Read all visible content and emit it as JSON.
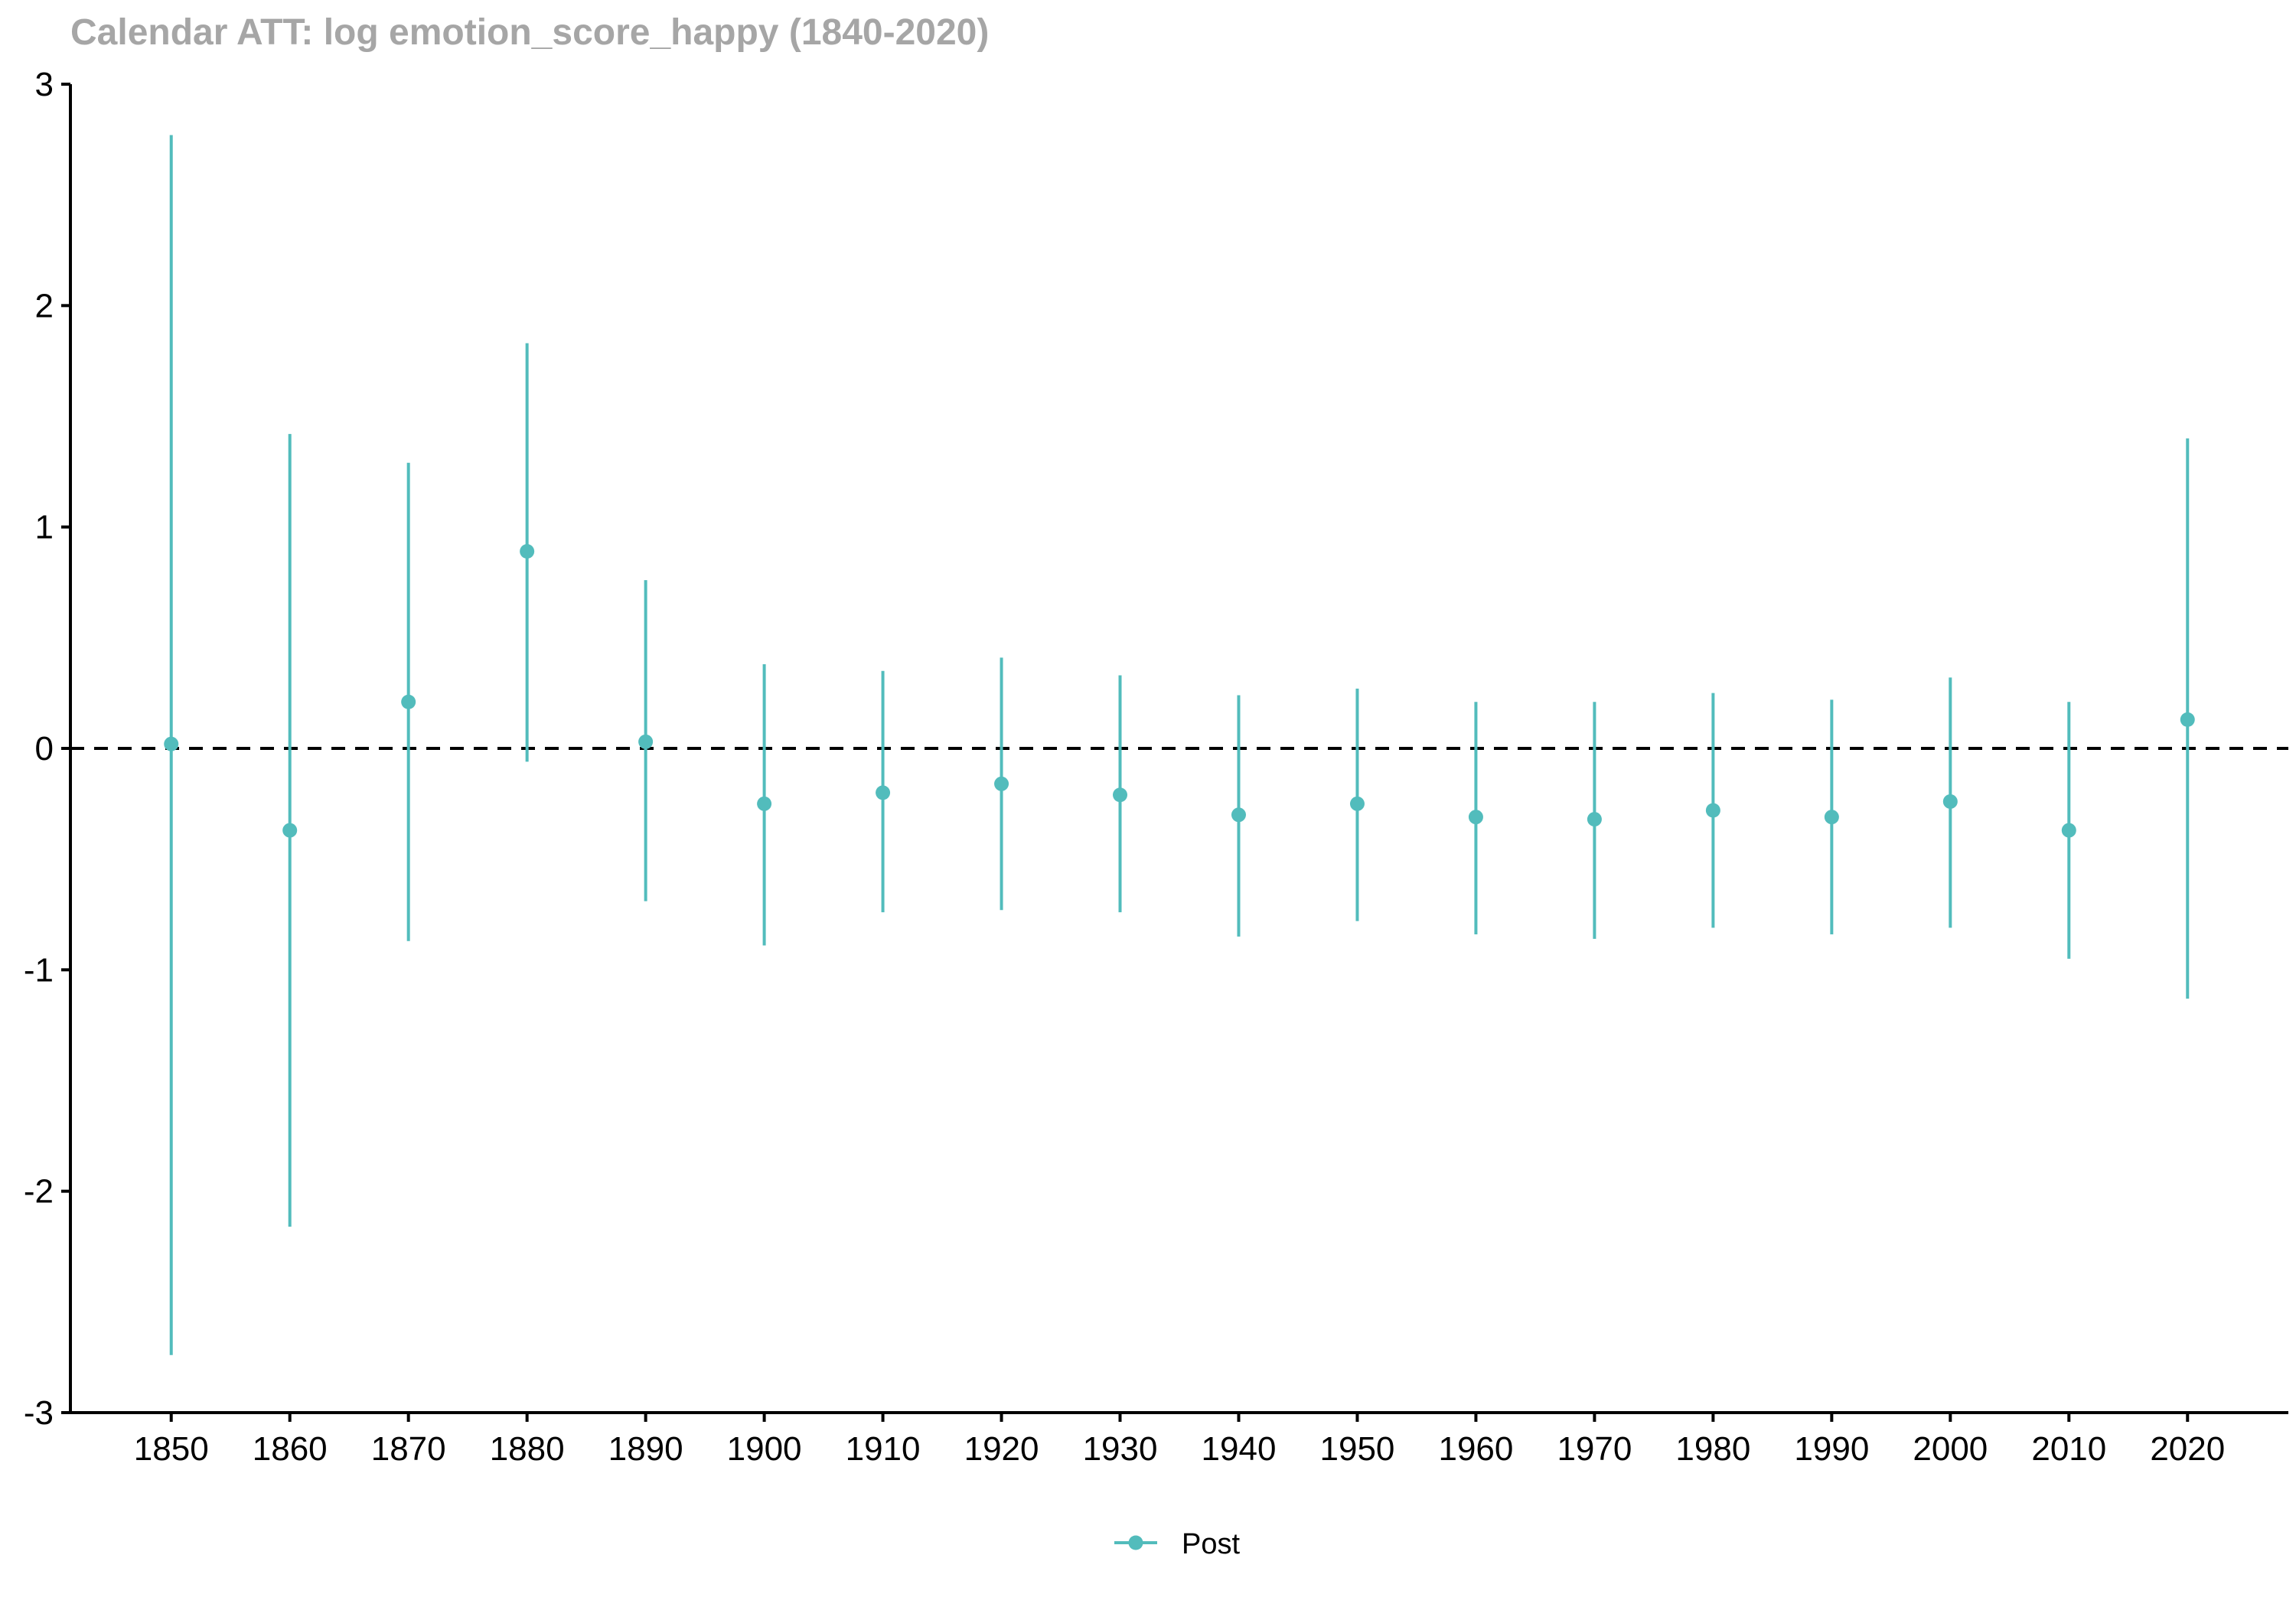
{
  "title": "Calendar ATT: log emotion_score_happy (1840-2020)",
  "chart_data": {
    "type": "scatter",
    "title": "Calendar ATT: log emotion_score_happy (1840-2020)",
    "xlabel": "",
    "ylabel": "",
    "x_ticks": [
      "1850",
      "1860",
      "1870",
      "1880",
      "1890",
      "1900",
      "1910",
      "1920",
      "1930",
      "1940",
      "1950",
      "1960",
      "1970",
      "1980",
      "1990",
      "2000",
      "2010",
      "2020"
    ],
    "y_ticks": [
      "3",
      "2",
      "1",
      "0",
      "-1",
      "-2",
      "-3"
    ],
    "ylim": [
      -3,
      3
    ],
    "xlim": [
      1841.5,
      2028.5
    ],
    "reference_line": {
      "y": 0,
      "style": "dashed",
      "color": "#000000"
    },
    "grid": false,
    "legend_position": "bottom",
    "series": [
      {
        "name": "Post",
        "color": "#52bcbc",
        "x": [
          1850,
          1860,
          1870,
          1880,
          1890,
          1900,
          1910,
          1920,
          1930,
          1940,
          1950,
          1960,
          1970,
          1980,
          1990,
          2000,
          2010,
          2020
        ],
        "estimate": [
          0.02,
          -0.37,
          0.21,
          0.89,
          0.03,
          -0.25,
          -0.2,
          -0.16,
          -0.21,
          -0.3,
          -0.25,
          -0.31,
          -0.32,
          -0.28,
          -0.31,
          -0.24,
          -0.37,
          0.13
        ],
        "ci_low": [
          -2.74,
          -2.16,
          -0.87,
          -0.06,
          -0.69,
          -0.89,
          -0.74,
          -0.73,
          -0.74,
          -0.85,
          -0.78,
          -0.84,
          -0.86,
          -0.81,
          -0.84,
          -0.81,
          -0.95,
          -1.13
        ],
        "ci_high": [
          2.77,
          1.42,
          1.29,
          1.83,
          0.76,
          0.38,
          0.35,
          0.41,
          0.33,
          0.24,
          0.27,
          0.21,
          0.21,
          0.25,
          0.22,
          0.32,
          0.21,
          1.4
        ]
      }
    ]
  },
  "legend": {
    "label": "Post"
  }
}
